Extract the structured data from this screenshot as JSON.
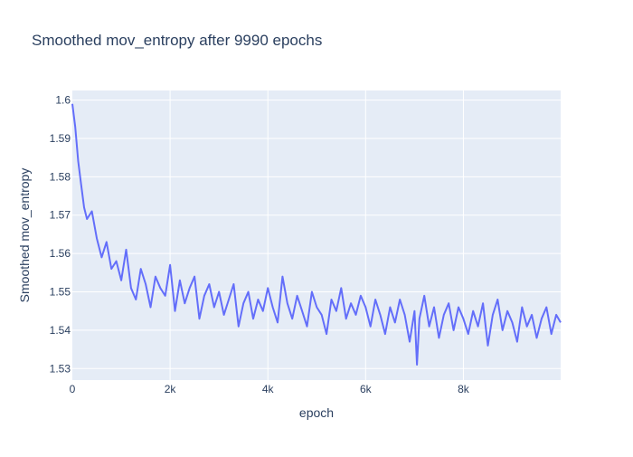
{
  "chart_data": {
    "type": "line",
    "title": "Smoothed mov_entropy after 9990 epochs",
    "xlabel": "epoch",
    "ylabel": "Smoothed mov_entropy",
    "xlim": [
      0,
      9990
    ],
    "ylim": [
      1.527,
      1.6025
    ],
    "x_ticks": [
      0,
      2000,
      4000,
      6000,
      8000
    ],
    "x_tick_labels": [
      "0",
      "2k",
      "4k",
      "6k",
      "8k"
    ],
    "y_ticks": [
      1.53,
      1.54,
      1.55,
      1.56,
      1.57,
      1.58,
      1.59,
      1.6
    ],
    "y_tick_labels": [
      "1.53",
      "1.54",
      "1.55",
      "1.56",
      "1.57",
      "1.58",
      "1.59",
      "1.6"
    ],
    "grid": true,
    "colors": {
      "series": "#636efa",
      "plot_bg": "#e5ecf6",
      "grid": "#ffffff",
      "text": "#2a3f5f"
    },
    "series": [
      {
        "x": [
          0,
          60,
          120,
          180,
          240,
          300,
          400,
          500,
          600,
          700,
          800,
          900,
          1000,
          1100,
          1200,
          1300,
          1400,
          1500,
          1600,
          1700,
          1800,
          1900,
          2000,
          2100,
          2200,
          2300,
          2400,
          2500,
          2600,
          2700,
          2800,
          2900,
          3000,
          3100,
          3200,
          3300,
          3400,
          3500,
          3600,
          3700,
          3800,
          3900,
          4000,
          4100,
          4200,
          4300,
          4400,
          4500,
          4600,
          4700,
          4800,
          4900,
          5000,
          5100,
          5200,
          5300,
          5400,
          5500,
          5600,
          5700,
          5800,
          5900,
          6000,
          6100,
          6200,
          6300,
          6400,
          6500,
          6600,
          6700,
          6800,
          6900,
          7000,
          7050,
          7100,
          7200,
          7300,
          7400,
          7500,
          7600,
          7700,
          7800,
          7900,
          8000,
          8100,
          8200,
          8300,
          8400,
          8500,
          8600,
          8700,
          8800,
          8900,
          9000,
          9100,
          9200,
          9300,
          9400,
          9500,
          9600,
          9700,
          9800,
          9900,
          9990
        ],
        "y": [
          1.599,
          1.593,
          1.584,
          1.578,
          1.572,
          1.569,
          1.571,
          1.564,
          1.559,
          1.563,
          1.556,
          1.558,
          1.553,
          1.561,
          1.551,
          1.548,
          1.556,
          1.552,
          1.546,
          1.554,
          1.551,
          1.549,
          1.557,
          1.545,
          1.553,
          1.547,
          1.551,
          1.554,
          1.543,
          1.549,
          1.552,
          1.546,
          1.55,
          1.544,
          1.548,
          1.552,
          1.541,
          1.547,
          1.55,
          1.543,
          1.548,
          1.545,
          1.551,
          1.546,
          1.542,
          1.554,
          1.547,
          1.543,
          1.549,
          1.545,
          1.541,
          1.55,
          1.546,
          1.544,
          1.539,
          1.548,
          1.545,
          1.551,
          1.543,
          1.547,
          1.544,
          1.549,
          1.546,
          1.541,
          1.548,
          1.544,
          1.539,
          1.546,
          1.542,
          1.548,
          1.544,
          1.537,
          1.545,
          1.531,
          1.543,
          1.549,
          1.541,
          1.546,
          1.538,
          1.544,
          1.547,
          1.54,
          1.546,
          1.543,
          1.539,
          1.545,
          1.541,
          1.547,
          1.536,
          1.544,
          1.548,
          1.54,
          1.545,
          1.542,
          1.537,
          1.546,
          1.541,
          1.544,
          1.538,
          1.543,
          1.546,
          1.539,
          1.544,
          1.542
        ]
      }
    ]
  }
}
